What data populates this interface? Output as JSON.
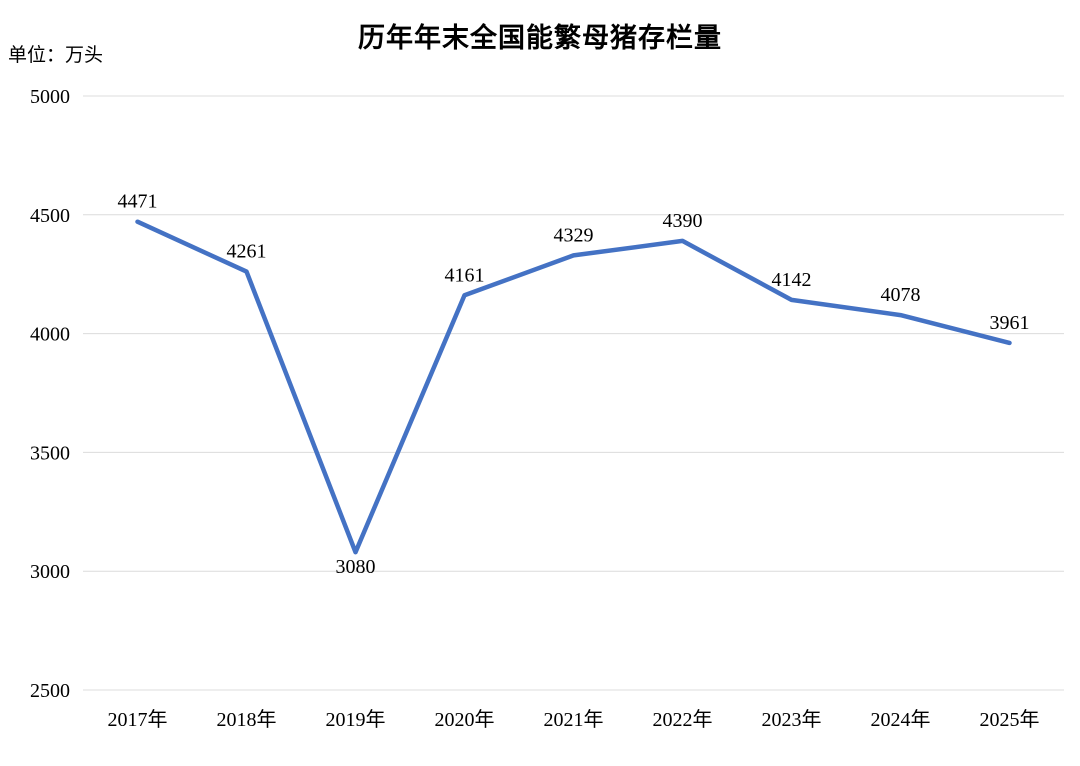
{
  "chart_data": {
    "type": "line",
    "title": "历年年末全国能繁母猪存栏量",
    "unit_label": "单位：万头",
    "categories": [
      "2017年",
      "2018年",
      "2019年",
      "2020年",
      "2021年",
      "2022年",
      "2023年",
      "2024年",
      "2025年"
    ],
    "series": [
      {
        "name": "能繁母猪存栏量",
        "values": [
          4471,
          4261,
          3080,
          4161,
          4329,
          4390,
          4142,
          4078,
          3961
        ]
      }
    ],
    "xlabel": "",
    "ylabel": "",
    "ylim": [
      2500,
      5000
    ],
    "yticks": [
      5000,
      4500,
      4000,
      3500,
      3000,
      2500
    ],
    "grid": true,
    "legend_position": "none",
    "data_labels_visible": true,
    "colors": {
      "line": "#4472C4",
      "gridline": "#DCDCDC",
      "text": "#000000",
      "background": "#FFFFFF"
    }
  }
}
